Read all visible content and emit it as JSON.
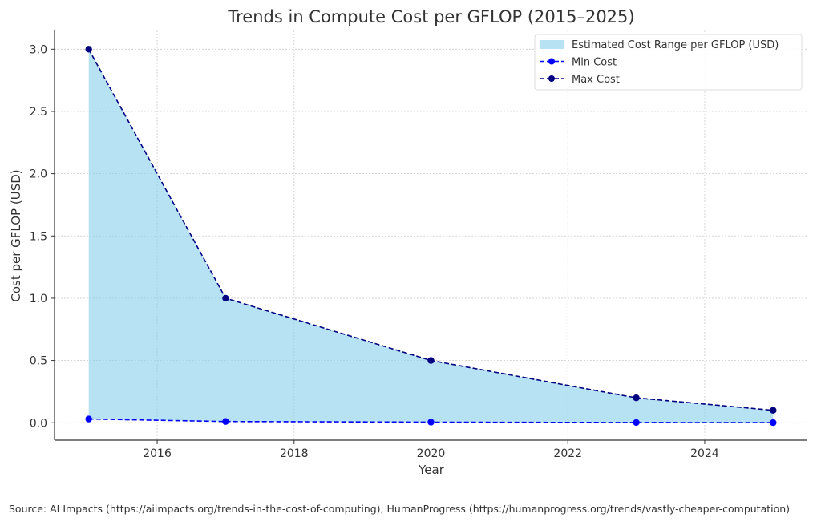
{
  "chart_data": {
    "type": "area",
    "title": "Trends in Compute Cost per GFLOP (2015–2025)",
    "xlabel": "Year",
    "ylabel": "Cost per GFLOP (USD)",
    "xlim": [
      2014.5,
      2025.5
    ],
    "ylim": [
      -0.14,
      3.15
    ],
    "x_ticks": [
      2016,
      2018,
      2020,
      2022,
      2024
    ],
    "x_tick_labels": [
      "2016",
      "2018",
      "2020",
      "2022",
      "2024"
    ],
    "y_ticks": [
      0.0,
      0.5,
      1.0,
      1.5,
      2.0,
      2.5,
      3.0
    ],
    "y_tick_labels": [
      "0.0",
      "0.5",
      "1.0",
      "1.5",
      "2.0",
      "2.5",
      "3.0"
    ],
    "grid": true,
    "x": [
      2015,
      2017,
      2020,
      2023,
      2025
    ],
    "series": [
      {
        "name": "Min Cost",
        "values": [
          0.03,
          0.01,
          0.005,
          0.002,
          0.001
        ],
        "color": "#0000ff",
        "style": "dashed",
        "marker": "circle"
      },
      {
        "name": "Max Cost",
        "values": [
          3.0,
          1.0,
          0.5,
          0.2,
          0.1
        ],
        "color": "#000080",
        "style": "dashed",
        "marker": "circle"
      }
    ],
    "fill": {
      "name": "Estimated Cost Range per GFLOP (USD)",
      "between": [
        "Min Cost",
        "Max Cost"
      ],
      "color": "#87ceeb",
      "alpha": 0.6
    },
    "legend": {
      "placement": "top-right",
      "entries": [
        "Estimated Cost Range per GFLOP (USD)",
        "Min Cost",
        "Max Cost"
      ]
    }
  },
  "source_note": "Source: AI Impacts (https://aiimpacts.org/trends-in-the-cost-of-computing), HumanProgress (https://humanprogress.org/trends/vastly-cheaper-computation)"
}
